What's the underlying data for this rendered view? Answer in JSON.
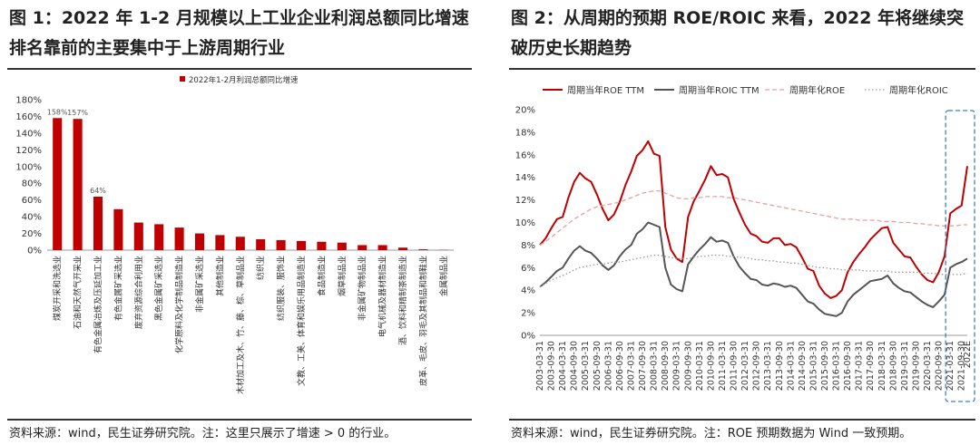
{
  "figure1": {
    "title": "图 1：2022 年 1-2 月规模以上工业企业利润总额同比增速排名靠前的主要集中于上游周期行业",
    "source": "资料来源：wind，民生证券研究院。注：这里只展示了增速 > 0 的行业。",
    "colors": {
      "bar": "#c00000"
    },
    "chart_data": {
      "type": "bar",
      "title": "",
      "legend": [
        "2022年1-2月利润总额同比增速"
      ],
      "legend_position": "top-center",
      "categories": [
        "煤炭开采和洗选业",
        "石油和天然气开采业",
        "有色金属冶炼及压延加工业",
        "有色金属矿采选业",
        "废弃资源综合利用业",
        "黑色金属矿采选业",
        "化学原料及化学制品制造业",
        "非金属矿采选业",
        "其他制造业",
        "木材加工及木、竹、藤、棕、草制品业",
        "纺织业",
        "纺织服装、服饰业",
        "文教、工美、体育和娱乐用品制造业",
        "食品制造业",
        "烟草制品业",
        "非金属矿物制品业",
        "电气机械及器材制造业",
        "酒、饮料和精制茶制造业",
        "皮革、毛皮、羽毛及其制品和制鞋业",
        "金属制品业"
      ],
      "values": [
        158,
        157,
        64,
        49,
        33,
        31,
        27,
        20,
        18,
        16,
        13,
        12,
        11,
        10,
        9,
        6,
        6,
        3,
        1,
        0.3
      ],
      "data_labels": [
        {
          "index": 0,
          "text": "158%"
        },
        {
          "index": 1,
          "text": "157%"
        },
        {
          "index": 2,
          "text": "64%"
        }
      ],
      "ylim": [
        0,
        180
      ],
      "yticks": [
        "0%",
        "20%",
        "40%",
        "60%",
        "80%",
        "100%",
        "120%",
        "140%",
        "160%",
        "180%"
      ],
      "xlabel": "",
      "ylabel": ""
    }
  },
  "figure2": {
    "title": "图 2：从周期的预期 ROE/ROIC 来看，2022 年将继续突破历史长期趋势",
    "source": "资料来源：wind，民生证券研究院。注：ROE 预期数据为 Wind 一致预期。",
    "colors": {
      "roe_ttm": "#c00000",
      "roic_ttm": "#555555",
      "roe_ann": "#e8a0a0",
      "roic_ann": "#999999",
      "highlight": "#3a7fc4"
    },
    "chart_data": {
      "type": "line",
      "title": "",
      "legend_position": "top",
      "ylim": [
        0,
        20
      ],
      "yticks": [
        "0%",
        "2%",
        "4%",
        "6%",
        "8%",
        "10%",
        "12%",
        "14%",
        "16%",
        "18%",
        "20%"
      ],
      "x_start": "2003-03-31",
      "x_step": "quarter",
      "x_end_label": "2022E",
      "x_ticks": [
        "2003-03-31",
        "2003-09-30",
        "2004-03-31",
        "2004-09-30",
        "2005-03-31",
        "2005-09-30",
        "2006-03-31",
        "2006-09-30",
        "2007-03-31",
        "2007-09-30",
        "2008-03-31",
        "2008-09-30",
        "2009-03-31",
        "2009-09-30",
        "2010-03-31",
        "2010-09-30",
        "2011-03-31",
        "2011-09-30",
        "2012-03-31",
        "2012-09-30",
        "2013-03-31",
        "2013-09-30",
        "2014-03-31",
        "2014-09-30",
        "2015-03-31",
        "2015-09-30",
        "2016-03-31",
        "2016-09-30",
        "2017-03-31",
        "2017-09-30",
        "2018-03-31",
        "2018-09-30",
        "2019-03-31",
        "2019-09-30",
        "2020-03-31",
        "2020-09-30",
        "2021-03-31",
        "2021-09-30",
        "2022E"
      ],
      "highlight_label": "forecast region (2021-09-30 to 2022E)",
      "series": [
        {
          "name": "周期当年ROE TTM",
          "style": "solid",
          "values": [
            8.0,
            8.6,
            9.5,
            10.3,
            10.5,
            12.2,
            13.6,
            14.4,
            13.9,
            13.6,
            12.5,
            11.2,
            10.2,
            10.7,
            11.8,
            13.3,
            14.5,
            15.9,
            16.4,
            17.2,
            16.1,
            15.9,
            9.6,
            7.6,
            6.8,
            6.5,
            10.5,
            11.9,
            12.8,
            13.8,
            15.0,
            14.2,
            14.3,
            14.0,
            12.1,
            10.9,
            9.8,
            9.0,
            8.8,
            8.3,
            8.2,
            8.6,
            8.6,
            8.0,
            8.1,
            7.8,
            6.9,
            5.9,
            5.7,
            4.4,
            3.7,
            3.3,
            3.5,
            4.0,
            5.6,
            6.5,
            7.2,
            7.8,
            8.5,
            9.0,
            9.5,
            9.6,
            8.2,
            7.6,
            7.0,
            6.9,
            6.1,
            5.4,
            4.9,
            4.7,
            5.6,
            7.0,
            10.8,
            11.2,
            11.5,
            15.0
          ]
        },
        {
          "name": "周期当年ROIC TTM",
          "style": "solid",
          "values": [
            4.3,
            4.7,
            5.2,
            5.7,
            6.0,
            6.8,
            7.5,
            7.9,
            7.5,
            7.3,
            6.8,
            6.2,
            5.8,
            6.2,
            7.0,
            7.6,
            8.0,
            9.0,
            9.4,
            10.0,
            9.8,
            9.6,
            6.0,
            4.5,
            4.1,
            3.9,
            6.3,
            7.0,
            7.6,
            8.1,
            8.7,
            8.3,
            8.4,
            8.2,
            7.0,
            6.1,
            5.5,
            5.0,
            4.9,
            4.5,
            4.4,
            4.6,
            4.5,
            4.3,
            4.4,
            4.2,
            3.6,
            3.0,
            2.8,
            2.3,
            1.9,
            1.8,
            1.7,
            2.0,
            3.0,
            3.6,
            4.0,
            4.4,
            4.8,
            4.9,
            5.0,
            5.3,
            4.6,
            4.2,
            3.9,
            3.8,
            3.4,
            3.0,
            2.7,
            2.5,
            3.0,
            3.6,
            6.0,
            6.3,
            6.5,
            6.8
          ]
        },
        {
          "name": "周期年化ROE",
          "style": "dashed",
          "values": [
            8.0,
            8.3,
            8.7,
            9.1,
            9.5,
            9.9,
            10.3,
            10.6,
            10.9,
            11.2,
            11.4,
            11.5,
            11.6,
            11.7,
            11.8,
            12.0,
            12.2,
            12.4,
            12.6,
            12.7,
            12.8,
            12.8,
            12.6,
            12.4,
            12.2,
            12.1,
            12.1,
            12.2,
            12.2,
            12.3,
            12.3,
            12.3,
            12.3,
            12.2,
            12.2,
            12.1,
            12.0,
            11.9,
            11.8,
            11.7,
            11.6,
            11.5,
            11.4,
            11.3,
            11.2,
            11.1,
            11.0,
            10.9,
            10.8,
            10.7,
            10.6,
            10.5,
            10.4,
            10.3,
            10.3,
            10.3,
            10.2,
            10.2,
            10.2,
            10.2,
            10.1,
            10.1,
            10.1,
            10.0,
            10.0,
            10.0,
            9.9,
            9.9,
            9.8,
            9.8,
            9.7,
            9.7,
            9.7,
            9.7,
            9.8,
            9.8
          ]
        },
        {
          "name": "周期年化ROIC",
          "style": "dotted",
          "values": [
            4.3,
            4.6,
            4.9,
            5.1,
            5.3,
            5.5,
            5.8,
            6.0,
            6.1,
            6.2,
            6.3,
            6.3,
            6.4,
            6.5,
            6.5,
            6.6,
            6.7,
            6.8,
            6.9,
            7.0,
            7.1,
            7.1,
            7.0,
            6.9,
            6.8,
            6.8,
            6.8,
            6.9,
            7.0,
            7.0,
            7.1,
            7.1,
            7.1,
            7.0,
            7.0,
            6.9,
            6.9,
            6.8,
            6.7,
            6.7,
            6.6,
            6.6,
            6.5,
            6.5,
            6.4,
            6.4,
            6.3,
            6.2,
            6.1,
            6.0,
            6.0,
            5.9,
            5.9,
            5.8,
            5.8,
            5.8,
            5.8,
            5.7,
            5.7,
            5.7,
            5.7,
            5.7,
            5.6,
            5.6,
            5.6,
            5.6,
            5.6,
            5.5,
            5.5,
            5.5,
            5.4,
            5.4,
            5.4,
            5.4,
            5.4,
            5.5
          ]
        }
      ]
    }
  }
}
